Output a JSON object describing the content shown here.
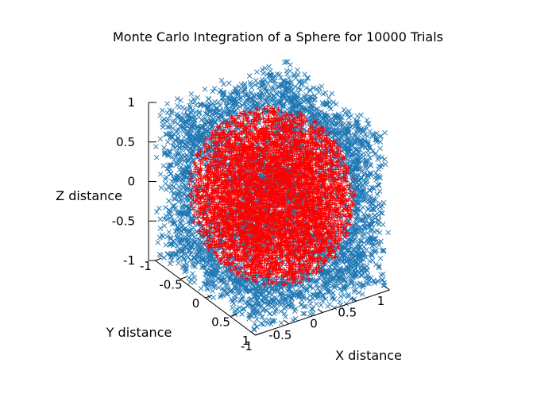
{
  "chart_data": {
    "type": "scatter",
    "title": "Monte Carlo Integration of a Sphere for 10000 Trials",
    "xlabel": "X distance",
    "ylabel": "Y distance",
    "zlabel": "Z distance",
    "xlim": [
      -1,
      1
    ],
    "ylim": [
      -1,
      1
    ],
    "zlim": [
      -1,
      1
    ],
    "trials": 10000,
    "xticks": [
      "-1",
      "-0.5",
      "0",
      "0.5",
      "1"
    ],
    "yticks": [
      "-1",
      "-0.5",
      "0",
      "0.5",
      "1"
    ],
    "zticks": [
      "-1",
      "-0.5",
      "0",
      "0.5",
      "1"
    ],
    "series": [
      {
        "color": "#1f77b4",
        "region": "outside unit sphere",
        "marker": "x"
      },
      {
        "color": "#ff0000",
        "region": "inside unit sphere",
        "marker": "+"
      }
    ],
    "grid": false,
    "legend": "none"
  }
}
